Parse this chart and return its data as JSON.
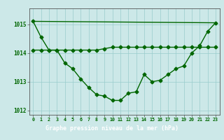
{
  "title": "Graphe pression niveau de la mer (hPa)",
  "hours": [
    0,
    1,
    2,
    3,
    4,
    5,
    6,
    7,
    8,
    9,
    10,
    11,
    12,
    13,
    14,
    15,
    16,
    17,
    18,
    19,
    20,
    21,
    22,
    23
  ],
  "series_main": [
    1015.1,
    1014.55,
    1014.1,
    1014.1,
    1013.65,
    1013.45,
    1013.1,
    1012.8,
    1012.55,
    1012.5,
    1012.35,
    1012.35,
    1012.6,
    1012.65,
    1013.25,
    1013.0,
    1013.05,
    1013.25,
    1013.45,
    1013.55,
    1014.0,
    1014.25,
    1014.75,
    1015.05
  ],
  "series_flat": [
    1014.1,
    1014.1,
    1014.1,
    1014.1,
    1014.1,
    1014.1,
    1014.1,
    1014.1,
    1014.1,
    1014.15,
    1014.2,
    1014.2,
    1014.2,
    1014.2,
    1014.2,
    1014.2,
    1014.2,
    1014.2,
    1014.2,
    1014.2,
    1014.2,
    1014.2,
    1014.2,
    1014.2
  ],
  "series_diag": [
    1015.1,
    null,
    null,
    null,
    null,
    null,
    null,
    null,
    null,
    null,
    null,
    null,
    null,
    null,
    null,
    null,
    null,
    null,
    null,
    null,
    null,
    null,
    null,
    1015.05
  ],
  "ylim": [
    1011.85,
    1015.55
  ],
  "yticks": [
    1012,
    1013,
    1014,
    1015
  ],
  "xlim": [
    -0.5,
    23.5
  ],
  "bg_color": "#cce8e8",
  "grid_color": "#99cccc",
  "line_color": "#006600",
  "title_bg": "#006600",
  "title_text_color": "#ffffff",
  "marker": "D",
  "marker_size": 2.5,
  "linewidth": 1.0,
  "figsize": [
    3.2,
    2.0
  ],
  "dpi": 100
}
